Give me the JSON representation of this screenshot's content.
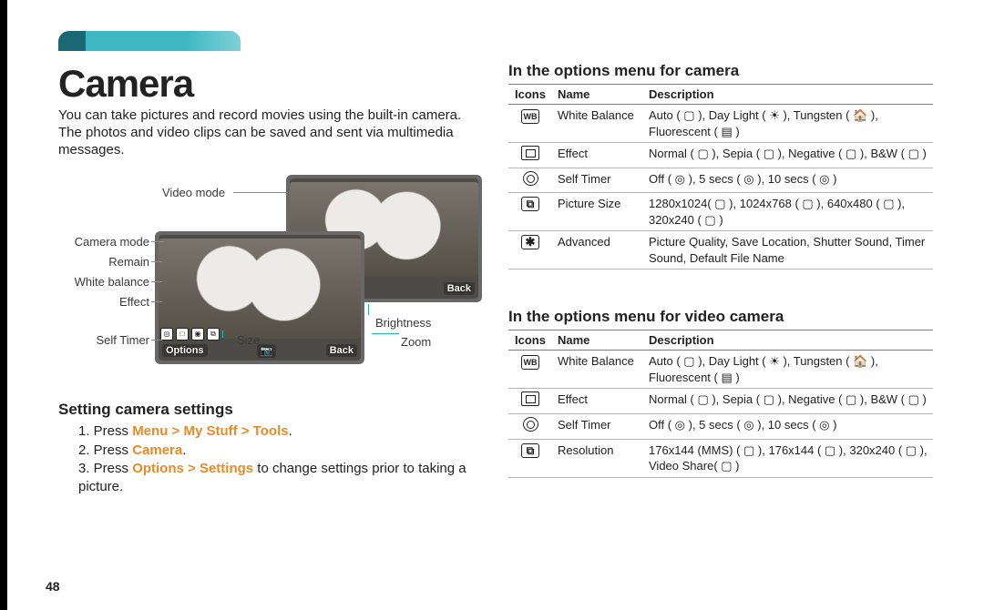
{
  "page_number": "48",
  "title": "Camera",
  "intro": "You can take pictures and record movies using the built-in camera. The photos and video clips can be saved and sent via multimedia messages.",
  "diagram_labels": {
    "video_mode": "Video mode",
    "camera_mode": "Camera mode",
    "remain": "Remain",
    "white_balance": "White balance",
    "effect": "Effect",
    "self_timer": "Self Timer",
    "size": "Size",
    "brightness": "Brightness",
    "zoom": "Zoom",
    "options": "Options",
    "back": "Back"
  },
  "section_setting_title": "Setting camera settings",
  "steps_raw": "1. Press |Menu > My Stuff > Tools|.\n2. Press |Camera|.\n3. Press |Options > Settings| to change settings prior to taking a picture.",
  "steps": [
    {
      "pre": "1. Press ",
      "orange": "Menu > My Stuff > Tools",
      "post": "."
    },
    {
      "pre": "2. Press ",
      "orange": "Camera",
      "post": "."
    },
    {
      "pre": "3. Press ",
      "orange": "Options > Settings",
      "post": " to change settings prior to taking a picture."
    }
  ],
  "right": {
    "camera_title": "In the options menu for camera",
    "video_title": "In the options menu for video camera",
    "headers": {
      "icons": "Icons",
      "name": "Name",
      "description": "Description"
    },
    "camera_rows": [
      {
        "icon": "wb",
        "name": "White Balance",
        "desc": "Auto ( ▢ ), Day Light ( ☀ ), Tungsten ( 🏠 ), Fluorescent ( ▤ )"
      },
      {
        "icon": "eff",
        "name": "Effect",
        "desc": "Normal ( ▢ ), Sepia ( ▢ ), Negative ( ▢ ), B&W ( ▢ )"
      },
      {
        "icon": "st",
        "name": "Self Timer",
        "desc": "Off ( ◎ ), 5 secs ( ◎ ), 10 secs ( ◎ )"
      },
      {
        "icon": "ps",
        "name": "Picture Size",
        "desc": "1280x1024( ▢ ), 1024x768 ( ▢ ), 640x480 ( ▢ ), 320x240 ( ▢ )"
      },
      {
        "icon": "adv",
        "name": "Advanced",
        "desc": "Picture Quality, Save Location, Shutter Sound, Timer Sound, Default File Name"
      }
    ],
    "video_rows": [
      {
        "icon": "wb",
        "name": "White Balance",
        "desc": "Auto ( ▢ ), Day Light ( ☀ ), Tungsten ( 🏠 ), Fluorescent ( ▤ )"
      },
      {
        "icon": "eff",
        "name": "Effect",
        "desc": "Normal ( ▢ ), Sepia ( ▢ ), Negative ( ▢ ), B&W ( ▢ )"
      },
      {
        "icon": "st",
        "name": "Self Timer",
        "desc": "Off ( ◎ ), 5 secs ( ◎ ), 10 secs ( ◎ )"
      },
      {
        "icon": "ps",
        "name": "Resolution",
        "desc": "176x144 (MMS) ( ▢ ), 176x144 ( ▢ ), 320x240 ( ▢ ), Video Share( ▢ )"
      }
    ]
  },
  "colors": {
    "orange": "#e98a28",
    "cyan": "#1fb7c9",
    "border": "#7c7c7c"
  }
}
